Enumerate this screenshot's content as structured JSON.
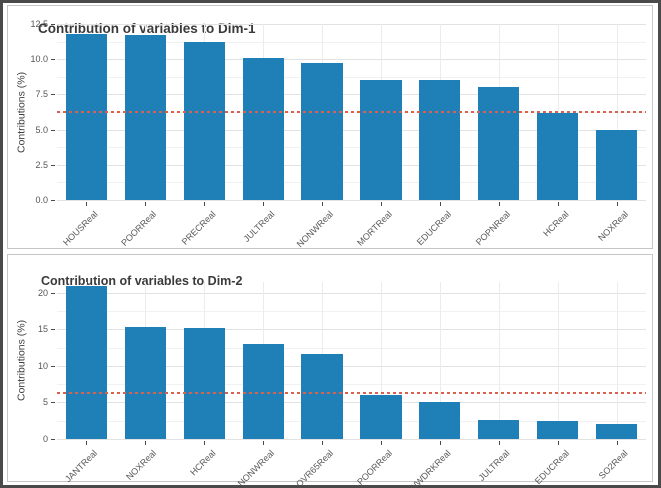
{
  "figure": {
    "background": "#ffffff",
    "outer_border_color": "#4a4a4a",
    "panel_border_color": "#c6c6c6"
  },
  "chart_data": [
    {
      "type": "bar",
      "title": "Contribution of variables to Dim-1",
      "xlabel": "",
      "ylabel": "Contributions (%)",
      "categories": [
        "HOUSReal",
        "POORReal",
        "PRECReal",
        "JULTReal",
        "NONWReal",
        "MORTReal",
        "EDUCReal",
        "POPNReal",
        "HCReal",
        "NOXReal"
      ],
      "values": [
        11.8,
        11.7,
        11.2,
        10.1,
        9.7,
        8.5,
        8.5,
        8.0,
        6.2,
        5.0
      ],
      "ylim": [
        0,
        12.5
      ],
      "yticks": [
        0.0,
        2.5,
        5.0,
        7.5,
        10.0,
        12.5
      ],
      "ytick_labels": [
        "0.0",
        "2.5",
        "5.0",
        "7.5",
        "10.0",
        "12.5"
      ],
      "threshold_line": 6.25,
      "bar_color": "#1f80b8",
      "threshold_color": "#d9614e",
      "grid": true,
      "legend": "none"
    },
    {
      "type": "bar",
      "title": "Contribution of variables to Dim-2",
      "xlabel": "",
      "ylabel": "Contributions (%)",
      "categories": [
        "JANTReal",
        "NOXReal",
        "HCReal",
        "NONWReal",
        "OVR65Real",
        "POORReal",
        "WWDRKReal",
        "JULTReal",
        "EDUCReal",
        "SO2Real"
      ],
      "values": [
        21.0,
        15.4,
        15.2,
        13.0,
        11.7,
        6.0,
        5.1,
        2.6,
        2.5,
        2.0
      ],
      "ylim": [
        0,
        21.5
      ],
      "yticks": [
        0,
        5,
        10,
        15,
        20
      ],
      "ytick_labels": [
        "0",
        "5",
        "10",
        "15",
        "20"
      ],
      "threshold_line": 6.25,
      "bar_color": "#1f80b8",
      "threshold_color": "#d9614e",
      "grid": true,
      "legend": "none"
    }
  ]
}
